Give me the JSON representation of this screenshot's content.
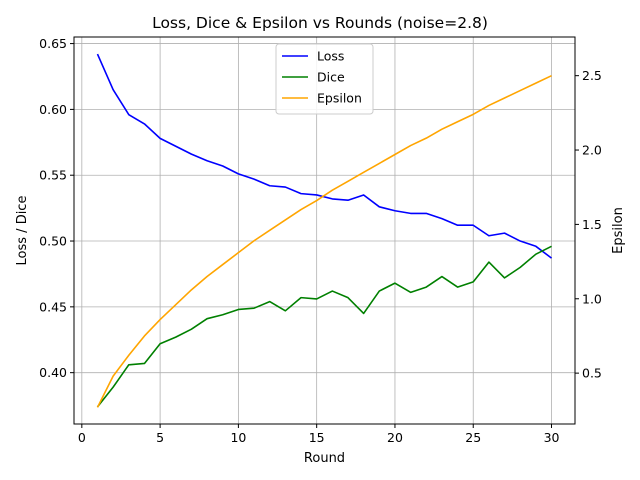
{
  "chart_data": {
    "type": "line",
    "title": "Loss, Dice & Epsilon vs Rounds (noise=2.8)",
    "xlabel": "Round",
    "ylabel": "Loss / Dice",
    "y2label": "Epsilon",
    "xlim": [
      -0.5,
      31.5
    ],
    "ylim": [
      0.361,
      0.655
    ],
    "y2lim": [
      0.158,
      2.76
    ],
    "xticks": [
      0,
      5,
      10,
      15,
      20,
      25,
      30
    ],
    "xtick_labels": [
      "0",
      "5",
      "10",
      "15",
      "20",
      "25",
      "30"
    ],
    "yticks": [
      0.4,
      0.45,
      0.5,
      0.55,
      0.6,
      0.65
    ],
    "ytick_labels": [
      "0.40",
      "0.45",
      "0.50",
      "0.55",
      "0.60",
      "0.65"
    ],
    "y2ticks": [
      0.5,
      1.0,
      1.5,
      2.0,
      2.5
    ],
    "y2tick_labels": [
      "0.5",
      "1.0",
      "1.5",
      "2.0",
      "2.5"
    ],
    "grid": true,
    "legend_position": "top-center",
    "x": [
      1,
      2,
      3,
      4,
      5,
      6,
      7,
      8,
      9,
      10,
      11,
      12,
      13,
      14,
      15,
      16,
      17,
      18,
      19,
      20,
      21,
      22,
      23,
      24,
      25,
      26,
      27,
      28,
      29,
      30
    ],
    "series": [
      {
        "name": "Loss",
        "axis": "left",
        "color": "#0000ff",
        "values": [
          0.642,
          0.615,
          0.596,
          0.589,
          0.578,
          0.572,
          0.566,
          0.561,
          0.557,
          0.551,
          0.547,
          0.542,
          0.541,
          0.536,
          0.535,
          0.532,
          0.531,
          0.535,
          0.526,
          0.523,
          0.521,
          0.521,
          0.517,
          0.512,
          0.512,
          0.504,
          0.506,
          0.5,
          0.496,
          0.487
        ]
      },
      {
        "name": "Dice",
        "axis": "left",
        "color": "#008000",
        "values": [
          0.374,
          0.389,
          0.406,
          0.407,
          0.422,
          0.427,
          0.433,
          0.441,
          0.444,
          0.448,
          0.449,
          0.454,
          0.447,
          0.457,
          0.456,
          0.462,
          0.457,
          0.445,
          0.462,
          0.468,
          0.461,
          0.465,
          0.473,
          0.465,
          0.469,
          0.484,
          0.472,
          0.48,
          0.49,
          0.496
        ]
      },
      {
        "name": "Epsilon",
        "axis": "right",
        "color": "#ffa500",
        "values": [
          0.27,
          0.48,
          0.62,
          0.75,
          0.86,
          0.96,
          1.06,
          1.15,
          1.23,
          1.31,
          1.39,
          1.46,
          1.53,
          1.6,
          1.66,
          1.73,
          1.79,
          1.85,
          1.91,
          1.97,
          2.03,
          2.08,
          2.14,
          2.19,
          2.24,
          2.3,
          2.35,
          2.4,
          2.45,
          2.5
        ]
      }
    ]
  }
}
